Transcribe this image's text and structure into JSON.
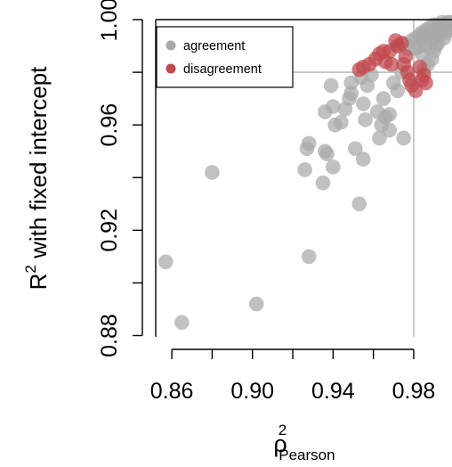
{
  "chart_data": {
    "type": "scatter",
    "title": "",
    "xlabel": "ρ",
    "xlabel_superscript": "2",
    "xlabel_subscript": "Pearson",
    "ylabel": "R",
    "ylabel_superscript": "2",
    "ylabel_suffix": " with fixed intercept",
    "xlim": [
      0.852,
      0.999
    ],
    "ylim": [
      0.8795,
      1.0
    ],
    "xticks": [
      0.86,
      0.9,
      0.94,
      0.98
    ],
    "xtick_labels": [
      "0.86",
      "0.90",
      "0.94",
      "0.98"
    ],
    "xtick_minor": [
      0.88,
      0.92,
      0.96
    ],
    "yticks": [
      0.88,
      0.92,
      0.96,
      1.0
    ],
    "ytick_labels": [
      "0.88",
      "0.92",
      "0.96",
      "1.00"
    ],
    "ytick_minor": [
      0.9,
      0.94,
      0.98
    ],
    "reference_lines": {
      "x": 0.98,
      "y": 0.98,
      "color": "#bdbdbd"
    },
    "legend_position": "top-left",
    "colors": {
      "agreement": "#a9a9a9",
      "disagreement": "#c0484e"
    },
    "series": [
      {
        "name": "agreement",
        "points": [
          [
            0.857,
            0.908
          ],
          [
            0.865,
            0.885
          ],
          [
            0.88,
            0.942
          ],
          [
            0.902,
            0.892
          ],
          [
            0.928,
            0.91
          ],
          [
            0.926,
            0.943
          ],
          [
            0.927,
            0.951
          ],
          [
            0.928,
            0.953
          ],
          [
            0.935,
            0.938
          ],
          [
            0.936,
            0.95
          ],
          [
            0.937,
            0.949
          ],
          [
            0.94,
            0.944
          ],
          [
            0.936,
            0.965
          ],
          [
            0.939,
            0.975
          ],
          [
            0.94,
            0.967
          ],
          [
            0.941,
            0.96
          ],
          [
            0.944,
            0.961
          ],
          [
            0.946,
            0.966
          ],
          [
            0.948,
            0.97
          ],
          [
            0.949,
            0.972
          ],
          [
            0.949,
            0.976
          ],
          [
            0.951,
            0.951
          ],
          [
            0.953,
            0.93
          ],
          [
            0.954,
            0.978
          ],
          [
            0.955,
            0.968
          ],
          [
            0.955,
            0.947
          ],
          [
            0.956,
            0.962
          ],
          [
            0.957,
            0.975
          ],
          [
            0.959,
            0.979
          ],
          [
            0.962,
            0.965
          ],
          [
            0.963,
            0.955
          ],
          [
            0.964,
            0.96
          ],
          [
            0.965,
            0.97
          ],
          [
            0.966,
            0.963
          ],
          [
            0.968,
            0.958
          ],
          [
            0.968,
            0.964
          ],
          [
            0.97,
            0.976
          ],
          [
            0.972,
            0.973
          ],
          [
            0.974,
            0.98
          ],
          [
            0.975,
            0.955
          ],
          [
            0.972,
            0.99
          ],
          [
            0.975,
            0.991
          ],
          [
            0.977,
            0.989
          ],
          [
            0.979,
            0.992
          ],
          [
            0.981,
            0.993
          ],
          [
            0.981,
            0.989
          ],
          [
            0.983,
            0.994
          ],
          [
            0.983,
            0.99
          ],
          [
            0.984,
            0.995
          ],
          [
            0.984,
            0.987
          ],
          [
            0.985,
            0.993
          ],
          [
            0.986,
            0.996
          ],
          [
            0.986,
            0.99
          ],
          [
            0.987,
            0.994
          ],
          [
            0.988,
            0.992
          ],
          [
            0.988,
            0.997
          ],
          [
            0.989,
            0.995
          ],
          [
            0.989,
            0.985
          ],
          [
            0.99,
            0.993
          ],
          [
            0.99,
            0.998
          ],
          [
            0.991,
            0.996
          ],
          [
            0.991,
            0.99
          ],
          [
            0.992,
            0.997
          ],
          [
            0.992,
            0.994
          ],
          [
            0.993,
            0.998
          ],
          [
            0.993,
            0.995
          ],
          [
            0.994,
            0.996
          ],
          [
            0.994,
            0.999
          ],
          [
            0.995,
            0.997
          ],
          [
            0.995,
            0.993
          ],
          [
            0.996,
            0.998
          ],
          [
            0.996,
            0.995
          ],
          [
            0.997,
            0.999
          ],
          [
            0.997,
            0.996
          ],
          [
            0.998,
            0.997
          ],
          [
            0.998,
            0.999
          ],
          [
            0.99,
            0.988
          ],
          [
            0.987,
            0.983
          ],
          [
            0.985,
            0.981
          ],
          [
            0.992,
            0.991
          ]
        ]
      },
      {
        "name": "disagreement",
        "points": [
          [
            0.953,
            0.981
          ],
          [
            0.955,
            0.982
          ],
          [
            0.958,
            0.983
          ],
          [
            0.961,
            0.985
          ],
          [
            0.963,
            0.987
          ],
          [
            0.965,
            0.988
          ],
          [
            0.966,
            0.984
          ],
          [
            0.968,
            0.988
          ],
          [
            0.969,
            0.983
          ],
          [
            0.972,
            0.99
          ],
          [
            0.974,
            0.991
          ],
          [
            0.975,
            0.983
          ],
          [
            0.976,
            0.986
          ],
          [
            0.977,
            0.98
          ],
          [
            0.978,
            0.977
          ],
          [
            0.979,
            0.975
          ],
          [
            0.981,
            0.973
          ],
          [
            0.984,
            0.977
          ],
          [
            0.985,
            0.979
          ],
          [
            0.986,
            0.976
          ],
          [
            0.971,
            0.992
          ],
          [
            0.983,
            0.982
          ]
        ]
      }
    ]
  }
}
